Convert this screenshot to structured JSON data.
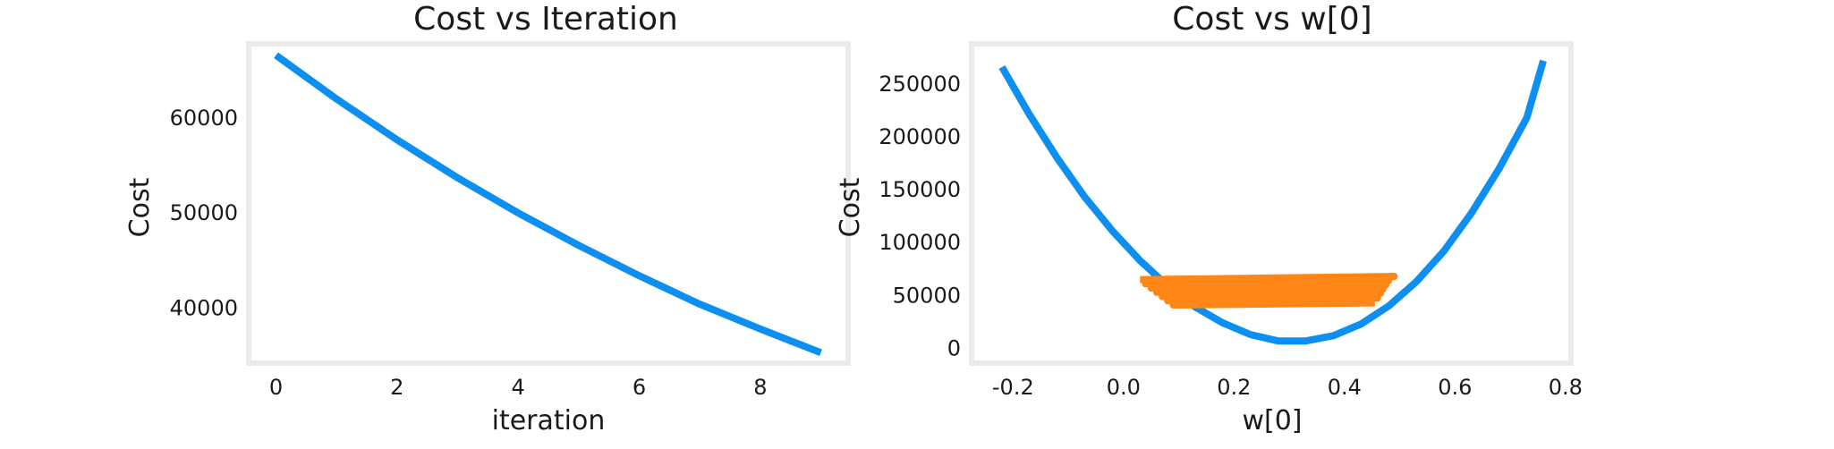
{
  "chart_data": [
    {
      "type": "line",
      "title": "Cost vs Iteration",
      "xlabel": "iteration",
      "ylabel": "Cost",
      "xlim": [
        -0.45,
        9.45
      ],
      "ylim": [
        34200,
        67800
      ],
      "xticks": [
        0,
        2,
        4,
        6,
        8
      ],
      "yticks": [
        40000,
        50000,
        60000
      ],
      "grid": false,
      "series": [
        {
          "color": "#0d8ff2",
          "x": [
            0,
            1,
            2,
            3,
            4,
            5,
            6,
            7,
            8,
            9
          ],
          "y": [
            66600,
            62000,
            57700,
            53700,
            50000,
            46600,
            43400,
            40400,
            37800,
            35300
          ]
        }
      ]
    },
    {
      "type": "line",
      "title": "Cost vs w[0]",
      "xlabel": "w[0]",
      "ylabel": "Cost",
      "xlim": [
        -0.275,
        0.81
      ],
      "ylim": [
        -14000,
        288000
      ],
      "xticks": [
        -0.2,
        0.0,
        0.2,
        0.4,
        0.6,
        0.8
      ],
      "xticklabels": [
        "-0.2",
        "0.0",
        "0.2",
        "0.4",
        "0.6",
        "0.8"
      ],
      "yticks": [
        0,
        50000,
        100000,
        150000,
        200000,
        250000
      ],
      "grid": false,
      "series": [
        {
          "color": "#0d8ff2",
          "x": [
            -0.22,
            -0.17,
            -0.12,
            -0.07,
            -0.02,
            0.03,
            0.08,
            0.13,
            0.18,
            0.23,
            0.28,
            0.33,
            0.38,
            0.43,
            0.48,
            0.53,
            0.58,
            0.63,
            0.68,
            0.73,
            0.76
          ],
          "y": [
            266000,
            221000,
            180000,
            143000,
            111000,
            83000,
            59000,
            39000,
            24000,
            13000,
            7000,
            7000,
            12000,
            23000,
            40000,
            63000,
            92000,
            128000,
            170000,
            218000,
            272000
          ]
        },
        {
          "color": "#ff8516",
          "x": [
            0.03,
            0.49,
            0.04,
            0.48,
            0.05,
            0.475,
            0.06,
            0.47,
            0.07,
            0.465,
            0.08,
            0.46,
            0.09,
            0.455
          ],
          "y": [
            65000,
            68000,
            61000,
            64000,
            57000,
            60000,
            53000,
            56000,
            49000,
            52000,
            45000,
            47500,
            41000,
            43000
          ]
        }
      ]
    }
  ]
}
